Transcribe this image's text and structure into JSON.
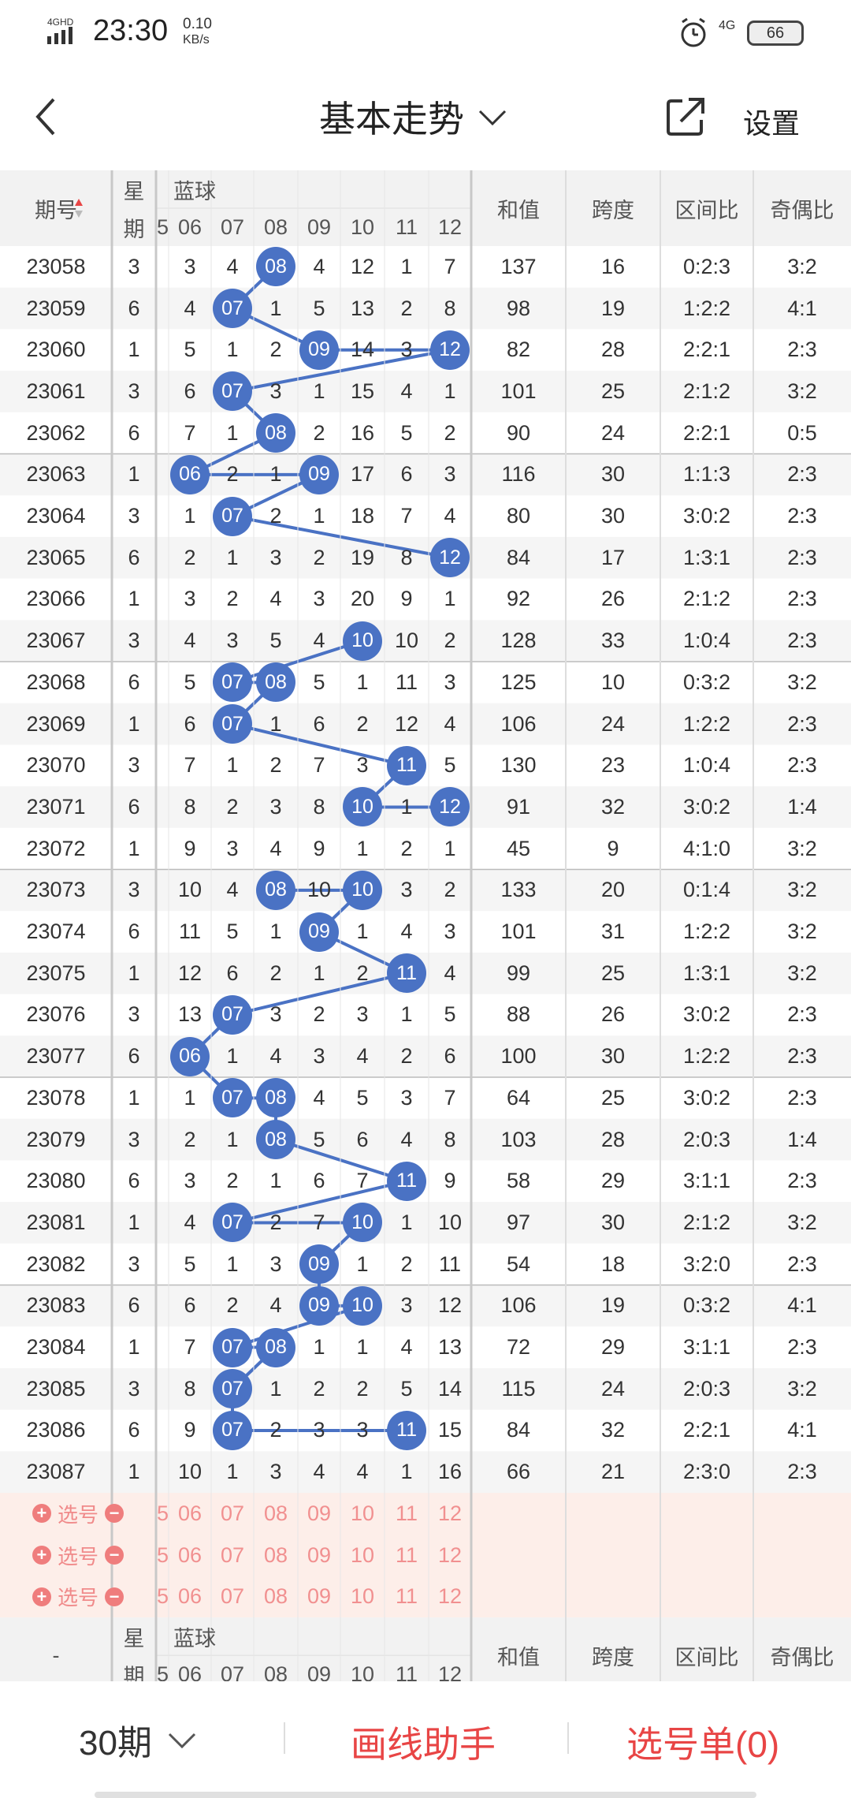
{
  "status_bar": {
    "network": "4G HD",
    "time": "23:30",
    "speed_value": "0.10",
    "speed_unit": "KB/s",
    "network_right": "4G",
    "battery": "66"
  },
  "nav": {
    "title": "基本走势",
    "settings": "设置"
  },
  "header": {
    "issue": "期号",
    "week_top": "星",
    "week_bottom": "期",
    "blue": "蓝球",
    "blue_nums": [
      "5",
      "06",
      "07",
      "08",
      "09",
      "10",
      "11",
      "12"
    ],
    "sum": "和值",
    "span": "跨度",
    "zone_ratio": "区间比",
    "odd_even": "奇偶比"
  },
  "rows": [
    {
      "issue": "23058",
      "week": "3",
      "cells": [
        "",
        "3",
        "4",
        "08",
        "4",
        "12",
        "1",
        "7"
      ],
      "ball": 3,
      "sum": "137",
      "span": "16",
      "zone": "0:2:3",
      "oe": "3:2"
    },
    {
      "issue": "23059",
      "week": "6",
      "cells": [
        "",
        "4",
        "07",
        "1",
        "5",
        "13",
        "2",
        "8"
      ],
      "ball": 2,
      "sum": "98",
      "span": "19",
      "zone": "1:2:2",
      "oe": "4:1"
    },
    {
      "issue": "23060",
      "week": "1",
      "cells": [
        "",
        "5",
        "1",
        "2",
        "09",
        "14",
        "3",
        "12"
      ],
      "ball": 4,
      "ball2": 7,
      "sum": "82",
      "span": "28",
      "zone": "2:2:1",
      "oe": "2:3"
    },
    {
      "issue": "23061",
      "week": "3",
      "cells": [
        "",
        "6",
        "07",
        "3",
        "1",
        "15",
        "4",
        "1"
      ],
      "ball": 2,
      "sum": "101",
      "span": "25",
      "zone": "2:1:2",
      "oe": "3:2"
    },
    {
      "issue": "23062",
      "week": "6",
      "cells": [
        "",
        "7",
        "1",
        "08",
        "2",
        "16",
        "5",
        "2"
      ],
      "ball": 3,
      "sum": "90",
      "span": "24",
      "zone": "2:2:1",
      "oe": "0:5"
    },
    {
      "issue": "23063",
      "week": "1",
      "cells": [
        "",
        "06",
        "2",
        "1",
        "09",
        "17",
        "6",
        "3"
      ],
      "ball": 1,
      "ball2": 4,
      "sum": "116",
      "span": "30",
      "zone": "1:1:3",
      "oe": "2:3"
    },
    {
      "issue": "23064",
      "week": "3",
      "cells": [
        "",
        "1",
        "07",
        "2",
        "1",
        "18",
        "7",
        "4"
      ],
      "ball": 2,
      "sum": "80",
      "span": "30",
      "zone": "3:0:2",
      "oe": "2:3"
    },
    {
      "issue": "23065",
      "week": "6",
      "cells": [
        "",
        "2",
        "1",
        "3",
        "2",
        "19",
        "8",
        "12"
      ],
      "ball": 7,
      "sum": "84",
      "span": "17",
      "zone": "1:3:1",
      "oe": "2:3"
    },
    {
      "issue": "23066",
      "week": "1",
      "cells": [
        "",
        "3",
        "2",
        "4",
        "3",
        "20",
        "9",
        "1"
      ],
      "sum": "92",
      "span": "26",
      "zone": "2:1:2",
      "oe": "2:3"
    },
    {
      "issue": "23067",
      "week": "3",
      "cells": [
        "",
        "4",
        "3",
        "5",
        "4",
        "10",
        "10",
        "2"
      ],
      "ball": 5,
      "sum": "128",
      "span": "33",
      "zone": "1:0:4",
      "oe": "2:3"
    },
    {
      "issue": "23068",
      "week": "6",
      "cells": [
        "",
        "5",
        "07",
        "08",
        "5",
        "1",
        "11",
        "3"
      ],
      "ball": 2,
      "ball2": 3,
      "sum": "125",
      "span": "10",
      "zone": "0:3:2",
      "oe": "3:2"
    },
    {
      "issue": "23069",
      "week": "1",
      "cells": [
        "",
        "6",
        "07",
        "1",
        "6",
        "2",
        "12",
        "4"
      ],
      "ball": 2,
      "sum": "106",
      "span": "24",
      "zone": "1:2:2",
      "oe": "2:3"
    },
    {
      "issue": "23070",
      "week": "3",
      "cells": [
        "",
        "7",
        "1",
        "2",
        "7",
        "3",
        "11",
        "5"
      ],
      "ball": 6,
      "sum": "130",
      "span": "23",
      "zone": "1:0:4",
      "oe": "2:3"
    },
    {
      "issue": "23071",
      "week": "6",
      "cells": [
        "",
        "8",
        "2",
        "3",
        "8",
        "10",
        "1",
        "12"
      ],
      "ball": 5,
      "ball2": 7,
      "sum": "91",
      "span": "32",
      "zone": "3:0:2",
      "oe": "1:4"
    },
    {
      "issue": "23072",
      "week": "1",
      "cells": [
        "",
        "9",
        "3",
        "4",
        "9",
        "1",
        "2",
        "1"
      ],
      "sum": "45",
      "span": "9",
      "zone": "4:1:0",
      "oe": "3:2"
    },
    {
      "issue": "23073",
      "week": "3",
      "cells": [
        "",
        "10",
        "4",
        "08",
        "10",
        "10",
        "3",
        "2"
      ],
      "ball": 3,
      "ball2": 5,
      "sum": "133",
      "span": "20",
      "zone": "0:1:4",
      "oe": "3:2"
    },
    {
      "issue": "23074",
      "week": "6",
      "cells": [
        "",
        "11",
        "5",
        "1",
        "09",
        "1",
        "4",
        "3"
      ],
      "ball": 4,
      "sum": "101",
      "span": "31",
      "zone": "1:2:2",
      "oe": "3:2"
    },
    {
      "issue": "23075",
      "week": "1",
      "cells": [
        "",
        "12",
        "6",
        "2",
        "1",
        "2",
        "11",
        "4"
      ],
      "ball": 6,
      "sum": "99",
      "span": "25",
      "zone": "1:3:1",
      "oe": "3:2"
    },
    {
      "issue": "23076",
      "week": "3",
      "cells": [
        "",
        "13",
        "07",
        "3",
        "2",
        "3",
        "1",
        "5"
      ],
      "ball": 2,
      "sum": "88",
      "span": "26",
      "zone": "3:0:2",
      "oe": "2:3"
    },
    {
      "issue": "23077",
      "week": "6",
      "cells": [
        "",
        "06",
        "1",
        "4",
        "3",
        "4",
        "2",
        "6"
      ],
      "ball": 1,
      "sum": "100",
      "span": "30",
      "zone": "1:2:2",
      "oe": "2:3"
    },
    {
      "issue": "23078",
      "week": "1",
      "cells": [
        "",
        "1",
        "07",
        "08",
        "4",
        "5",
        "3",
        "7"
      ],
      "ball": 2,
      "ball2": 3,
      "sum": "64",
      "span": "25",
      "zone": "3:0:2",
      "oe": "2:3"
    },
    {
      "issue": "23079",
      "week": "3",
      "cells": [
        "",
        "2",
        "1",
        "08",
        "5",
        "6",
        "4",
        "8"
      ],
      "ball": 3,
      "sum": "103",
      "span": "28",
      "zone": "2:0:3",
      "oe": "1:4"
    },
    {
      "issue": "23080",
      "week": "6",
      "cells": [
        "",
        "3",
        "2",
        "1",
        "6",
        "7",
        "11",
        "9"
      ],
      "ball": 6,
      "sum": "58",
      "span": "29",
      "zone": "3:1:1",
      "oe": "2:3"
    },
    {
      "issue": "23081",
      "week": "1",
      "cells": [
        "",
        "4",
        "07",
        "2",
        "7",
        "10",
        "1",
        "10"
      ],
      "ball": 2,
      "ball2": 5,
      "sum": "97",
      "span": "30",
      "zone": "2:1:2",
      "oe": "3:2"
    },
    {
      "issue": "23082",
      "week": "3",
      "cells": [
        "",
        "5",
        "1",
        "3",
        "09",
        "1",
        "2",
        "11"
      ],
      "ball": 4,
      "sum": "54",
      "span": "18",
      "zone": "3:2:0",
      "oe": "2:3"
    },
    {
      "issue": "23083",
      "week": "6",
      "cells": [
        "",
        "6",
        "2",
        "4",
        "09",
        "10",
        "3",
        "12"
      ],
      "ball": 4,
      "ball2": 5,
      "sum": "106",
      "span": "19",
      "zone": "0:3:2",
      "oe": "4:1"
    },
    {
      "issue": "23084",
      "week": "1",
      "cells": [
        "",
        "7",
        "07",
        "08",
        "1",
        "1",
        "4",
        "13"
      ],
      "ball": 2,
      "ball2": 3,
      "sum": "72",
      "span": "29",
      "zone": "3:1:1",
      "oe": "2:3"
    },
    {
      "issue": "23085",
      "week": "3",
      "cells": [
        "",
        "8",
        "07",
        "1",
        "2",
        "2",
        "5",
        "14"
      ],
      "ball": 2,
      "sum": "115",
      "span": "24",
      "zone": "2:0:3",
      "oe": "3:2"
    },
    {
      "issue": "23086",
      "week": "6",
      "cells": [
        "",
        "9",
        "07",
        "2",
        "3",
        "3",
        "11",
        "15"
      ],
      "ball": 2,
      "ball2": 6,
      "sum": "84",
      "span": "32",
      "zone": "2:2:1",
      "oe": "4:1"
    },
    {
      "issue": "23087",
      "week": "1",
      "cells": [
        "",
        "10",
        "1",
        "3",
        "4",
        "4",
        "1",
        "16"
      ],
      "sum": "66",
      "span": "21",
      "zone": "2:3:0",
      "oe": "2:3"
    }
  ],
  "pick_rows": [
    {
      "label": "选号",
      "nums": [
        "5",
        "06",
        "07",
        "08",
        "09",
        "10",
        "11",
        "12"
      ]
    },
    {
      "label": "选号",
      "nums": [
        "5",
        "06",
        "07",
        "08",
        "09",
        "10",
        "11",
        "12"
      ]
    },
    {
      "label": "选号",
      "nums": [
        "5",
        "06",
        "07",
        "08",
        "09",
        "10",
        "11",
        "12"
      ]
    }
  ],
  "footer_header": {
    "issue": "-",
    "week_top": "星",
    "week_bottom": "期",
    "blue": "蓝球",
    "blue_nums": [
      "5",
      "06",
      "07",
      "08",
      "09",
      "10",
      "11",
      "12"
    ],
    "sum": "和值",
    "span": "跨度",
    "zone_ratio": "区间比",
    "odd_even": "奇偶比"
  },
  "bottom": {
    "periods": "30期",
    "draw_helper": "画线助手",
    "pick_list": "选号单(0)"
  },
  "colors": {
    "ball": "#4a72c4",
    "accent_red": "#e84545",
    "pick_bg": "#fdeee9"
  }
}
